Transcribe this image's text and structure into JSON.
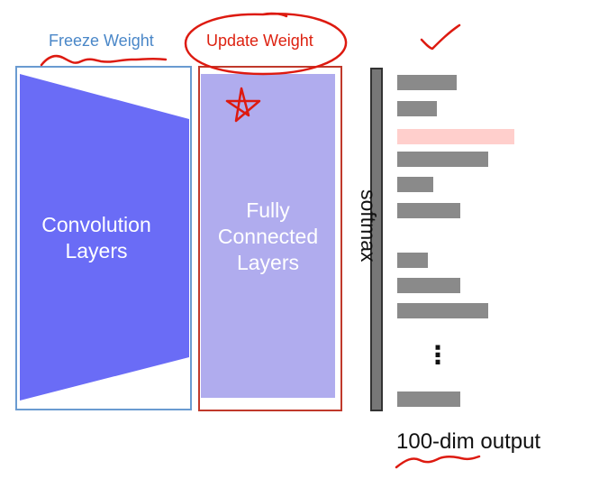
{
  "labels": {
    "freeze": "Freeze Weight",
    "update": "Update Weight",
    "conv": "Convolution\nLayers",
    "fc": "Fully\nConnected\nLayers",
    "softmax": "softmax",
    "output": "100-dim output",
    "ellipsis": "⋮"
  },
  "output_bars": [
    {
      "value": 0.51,
      "highlight": false
    },
    {
      "value": 0.34,
      "highlight": false
    },
    {
      "value": 1.0,
      "highlight": true
    },
    {
      "value": 0.78,
      "highlight": false
    },
    {
      "value": 0.31,
      "highlight": false
    },
    {
      "value": 0.54,
      "highlight": false
    },
    {
      "value": 0.26,
      "highlight": false
    },
    {
      "value": 0.54,
      "highlight": false
    },
    {
      "value": 0.78,
      "highlight": false
    },
    {
      "value": 0.54,
      "highlight": false
    }
  ],
  "colors": {
    "freeze_text": "#4a87c8",
    "freeze_border": "#6a9bd1",
    "update_text": "#dd2211",
    "update_border": "#c0392b",
    "annotation_red": "#dd1a10",
    "conv_fill": "#6a6cf6",
    "fc_fill": "#b0acee",
    "softmax_bar": "#777777",
    "output_bar": "#8a8a8a",
    "output_highlight": "#ffcfcc"
  }
}
